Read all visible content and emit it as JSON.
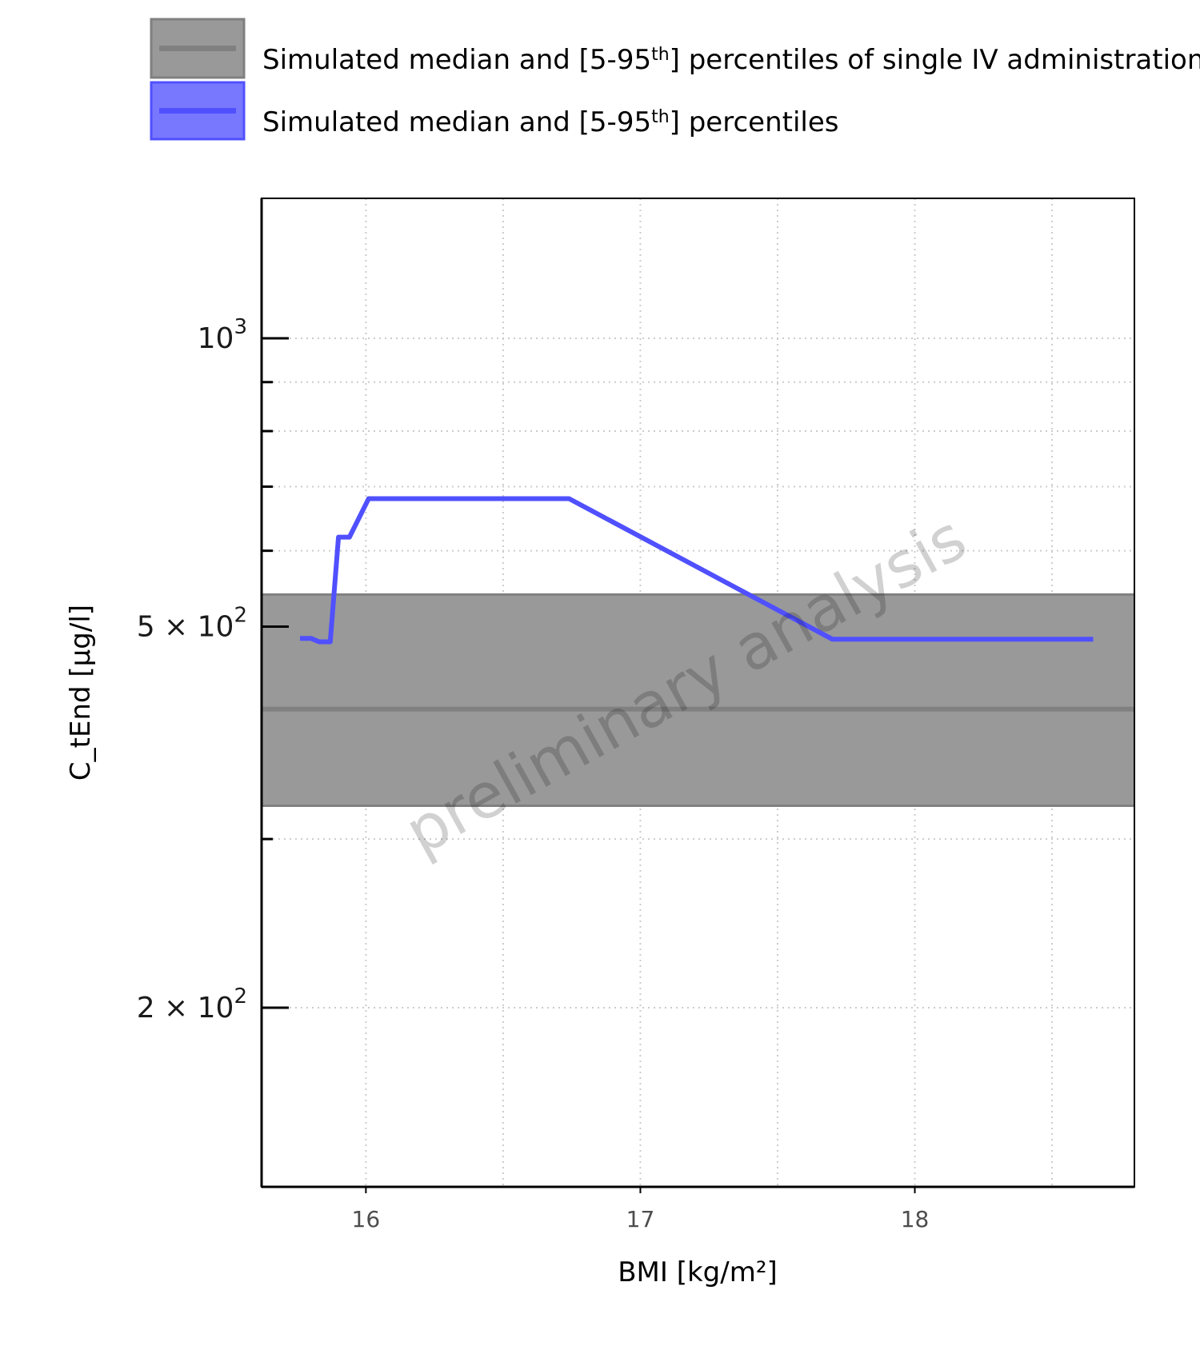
{
  "chart_data": {
    "type": "line",
    "title": "",
    "xlabel": "BMI [kg/m²]",
    "ylabel": "C_tEnd [µg/l]",
    "xlim": [
      15.62,
      18.8
    ],
    "ylim": [
      130,
      1400
    ],
    "yscale": "log",
    "xticks": [
      {
        "value": 16,
        "label": "16"
      },
      {
        "value": 17,
        "label": "17"
      },
      {
        "value": 18,
        "label": "18"
      }
    ],
    "yticks": [
      {
        "value": 200,
        "base": "2 × 10",
        "exp": "2"
      },
      {
        "value": 500,
        "base": "5 × 10",
        "exp": "2"
      },
      {
        "value": 1000,
        "base": "10",
        "exp": "3"
      }
    ],
    "y_minor_ticks": [
      300,
      600,
      700,
      800,
      900
    ],
    "grid": true,
    "legend_placement": "top",
    "watermark": "preliminary analysis",
    "series": [
      {
        "name": "Simulated median and [5-95th] percentiles",
        "kind": "line",
        "color": "#5050ff",
        "points": [
          {
            "x": 15.76,
            "y": 486
          },
          {
            "x": 15.8,
            "y": 486
          },
          {
            "x": 15.83,
            "y": 482
          },
          {
            "x": 15.87,
            "y": 482
          },
          {
            "x": 15.9,
            "y": 620
          },
          {
            "x": 15.94,
            "y": 620
          },
          {
            "x": 16.01,
            "y": 680
          },
          {
            "x": 16.74,
            "y": 680
          },
          {
            "x": 17.7,
            "y": 485
          },
          {
            "x": 18.65,
            "y": 485
          }
        ]
      },
      {
        "name": "Simulated median and [5-95th] percentiles of single IV administration",
        "kind": "band",
        "color": "#808080",
        "median": 410,
        "lower": 325,
        "upper": 540
      }
    ]
  },
  "legend": [
    {
      "text_before": "Simulated median and [5-95",
      "sup": "th",
      "text_after": "] percentiles of single IV administration",
      "color": "#808080"
    },
    {
      "text_before": "Simulated median and [5-95",
      "sup": "th",
      "text_after": "] percentiles",
      "color": "#5050ff"
    }
  ]
}
